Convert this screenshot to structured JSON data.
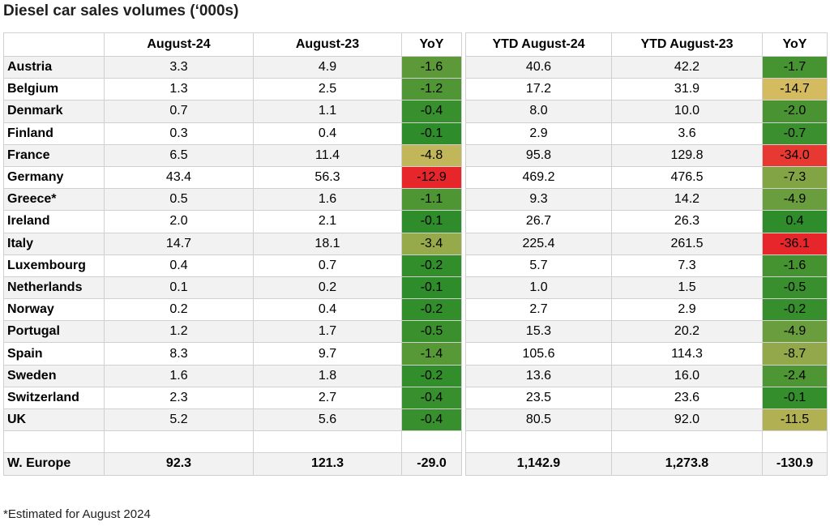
{
  "title": "Diesel car sales volumes (‘000s)",
  "footnote": "*Estimated for August 2024",
  "chart_data": {
    "type": "table",
    "columns": [
      "",
      "August-24",
      "August-23",
      "YoY",
      "YTD August-24",
      "YTD August-23",
      "YoY"
    ],
    "rows": [
      {
        "country": "Austria",
        "aug24": "3.3",
        "aug23": "4.9",
        "yoy": "-1.6",
        "ytd24": "40.6",
        "ytd23": "42.2",
        "ytd_yoy": "-1.7"
      },
      {
        "country": "Belgium",
        "aug24": "1.3",
        "aug23": "2.5",
        "yoy": "-1.2",
        "ytd24": "17.2",
        "ytd23": "31.9",
        "ytd_yoy": "-14.7"
      },
      {
        "country": "Denmark",
        "aug24": "0.7",
        "aug23": "1.1",
        "yoy": "-0.4",
        "ytd24": "8.0",
        "ytd23": "10.0",
        "ytd_yoy": "-2.0"
      },
      {
        "country": "Finland",
        "aug24": "0.3",
        "aug23": "0.4",
        "yoy": "-0.1",
        "ytd24": "2.9",
        "ytd23": "3.6",
        "ytd_yoy": "-0.7"
      },
      {
        "country": "France",
        "aug24": "6.5",
        "aug23": "11.4",
        "yoy": "-4.8",
        "ytd24": "95.8",
        "ytd23": "129.8",
        "ytd_yoy": "-34.0"
      },
      {
        "country": "Germany",
        "aug24": "43.4",
        "aug23": "56.3",
        "yoy": "-12.9",
        "ytd24": "469.2",
        "ytd23": "476.5",
        "ytd_yoy": "-7.3"
      },
      {
        "country": "Greece*",
        "aug24": "0.5",
        "aug23": "1.6",
        "yoy": "-1.1",
        "ytd24": "9.3",
        "ytd23": "14.2",
        "ytd_yoy": "-4.9"
      },
      {
        "country": "Ireland",
        "aug24": "2.0",
        "aug23": "2.1",
        "yoy": "-0.1",
        "ytd24": "26.7",
        "ytd23": "26.3",
        "ytd_yoy": "0.4"
      },
      {
        "country": "Italy",
        "aug24": "14.7",
        "aug23": "18.1",
        "yoy": "-3.4",
        "ytd24": "225.4",
        "ytd23": "261.5",
        "ytd_yoy": "-36.1"
      },
      {
        "country": "Luxembourg",
        "aug24": "0.4",
        "aug23": "0.7",
        "yoy": "-0.2",
        "ytd24": "5.7",
        "ytd23": "7.3",
        "ytd_yoy": "-1.6"
      },
      {
        "country": "Netherlands",
        "aug24": "0.1",
        "aug23": "0.2",
        "yoy": "-0.1",
        "ytd24": "1.0",
        "ytd23": "1.5",
        "ytd_yoy": "-0.5"
      },
      {
        "country": "Norway",
        "aug24": "0.2",
        "aug23": "0.4",
        "yoy": "-0.2",
        "ytd24": "2.7",
        "ytd23": "2.9",
        "ytd_yoy": "-0.2"
      },
      {
        "country": "Portugal",
        "aug24": "1.2",
        "aug23": "1.7",
        "yoy": "-0.5",
        "ytd24": "15.3",
        "ytd23": "20.2",
        "ytd_yoy": "-4.9"
      },
      {
        "country": "Spain",
        "aug24": "8.3",
        "aug23": "9.7",
        "yoy": "-1.4",
        "ytd24": "105.6",
        "ytd23": "114.3",
        "ytd_yoy": "-8.7"
      },
      {
        "country": "Sweden",
        "aug24": "1.6",
        "aug23": "1.8",
        "yoy": "-0.2",
        "ytd24": "13.6",
        "ytd23": "16.0",
        "ytd_yoy": "-2.4"
      },
      {
        "country": "Switzerland",
        "aug24": "2.3",
        "aug23": "2.7",
        "yoy": "-0.4",
        "ytd24": "23.5",
        "ytd23": "23.6",
        "ytd_yoy": "-0.1"
      },
      {
        "country": "UK",
        "aug24": "5.2",
        "aug23": "5.6",
        "yoy": "-0.4",
        "ytd24": "80.5",
        "ytd23": "92.0",
        "ytd_yoy": "-11.5"
      }
    ],
    "total": {
      "country": "W. Europe",
      "aug24": "92.3",
      "aug23": "121.3",
      "yoy": "-29.0",
      "ytd24": "1,142.9",
      "ytd23": "1,273.8",
      "ytd_yoy": "-130.9"
    },
    "heatmap_colors": {
      "worst": "#e6262b",
      "mid": "#f6c56a",
      "best": "#2f8c2a"
    }
  }
}
